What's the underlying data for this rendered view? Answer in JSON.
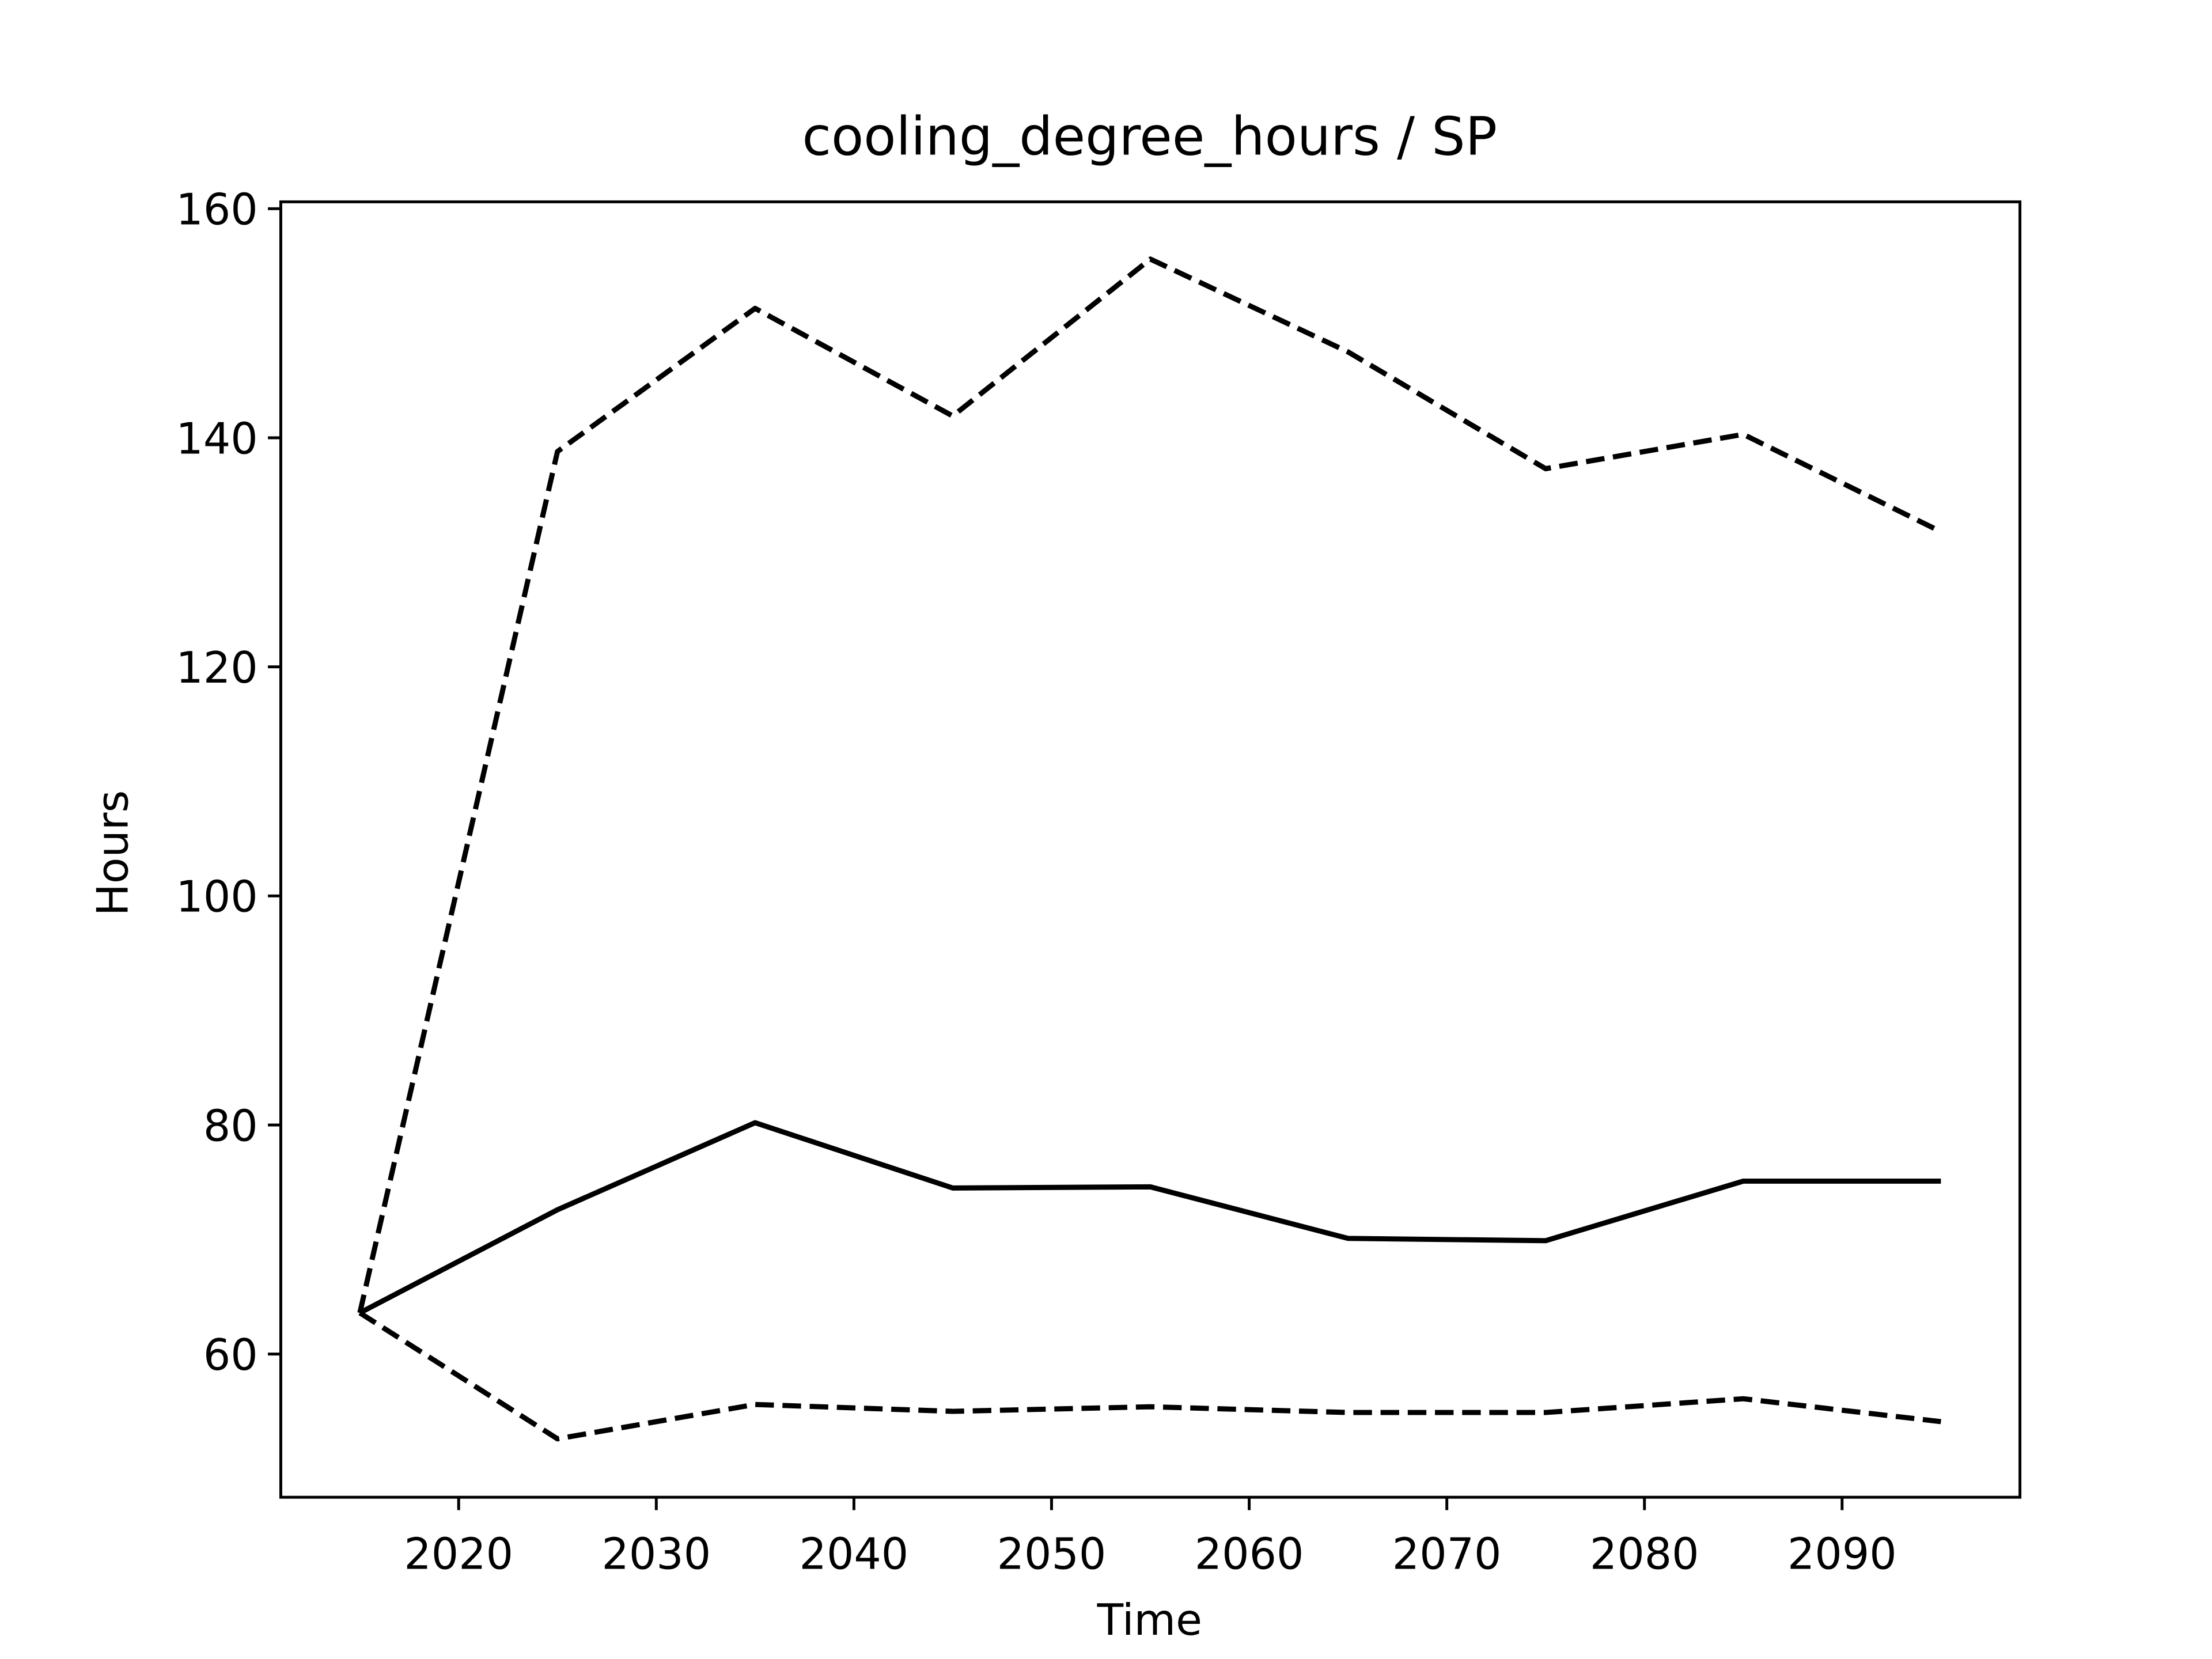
{
  "chart_data": {
    "type": "line",
    "title": "cooling_degree_hours / SP",
    "x_label": "Time",
    "y_label": "Hours",
    "x": [
      2015,
      2025,
      2035,
      2045,
      2055,
      2065,
      2075,
      2085,
      2095
    ],
    "series": [
      {
        "color": "#000000",
        "dashed": false,
        "values": [
          63.6,
          72.6,
          80.2,
          74.5,
          74.6,
          70.1,
          69.9,
          75.1,
          75.1
        ]
      },
      {
        "color": "#000000",
        "dashed": true,
        "values": [
          63.6,
          138.8,
          151.3,
          141.9,
          155.6,
          147.5,
          137.3,
          140.3,
          131.8
        ]
      },
      {
        "color": "#000000",
        "dashed": true,
        "values": [
          63.6,
          52.6,
          55.6,
          55.0,
          55.4,
          54.9,
          54.9,
          56.1,
          54.1
        ]
      }
    ],
    "xlim": [
      2011,
      2099
    ],
    "xticks": [
      2020,
      2030,
      2040,
      2050,
      2060,
      2070,
      2080,
      2090
    ],
    "ylim": [
      47.5,
      160.6
    ],
    "yticks": [
      60,
      80,
      100,
      120,
      140,
      160
    ],
    "grid": false
  }
}
